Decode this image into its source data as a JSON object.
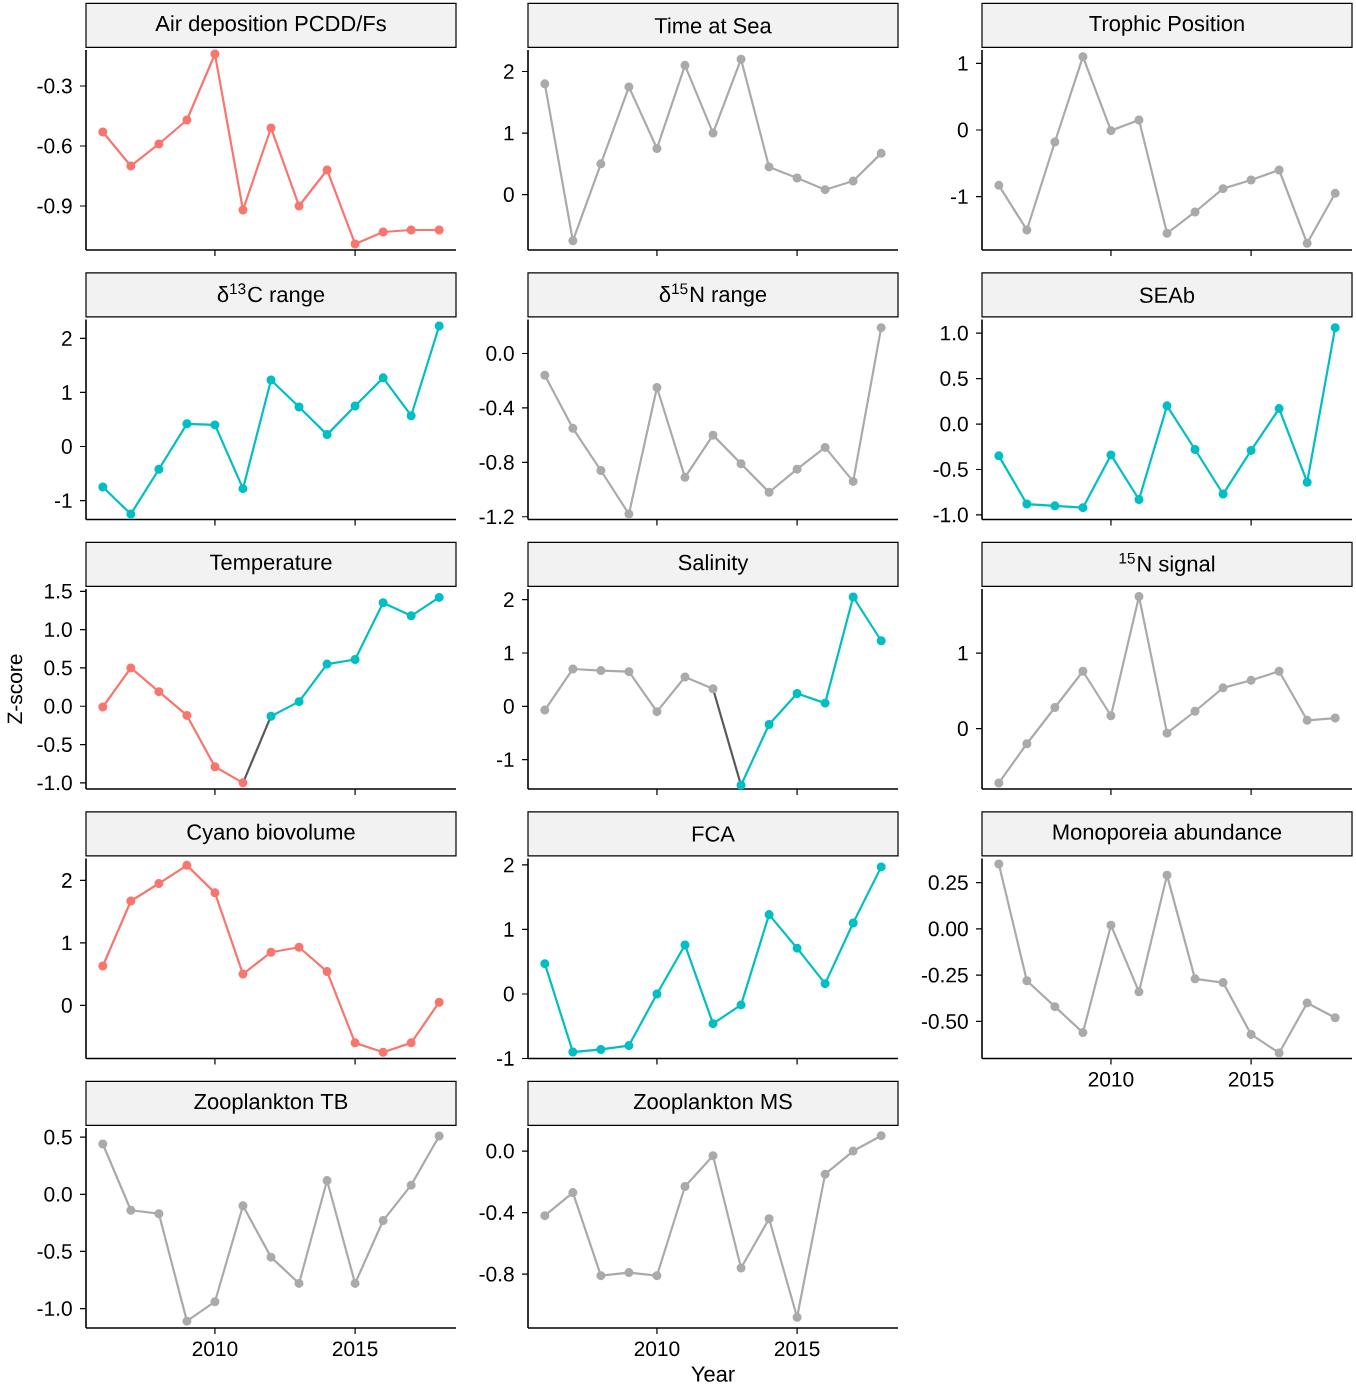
{
  "chart_data": [
    {
      "type": "line",
      "title": "Air deposition PCDD/Fs",
      "x": [
        2006,
        2007,
        2008,
        2009,
        2010,
        2011,
        2012,
        2013,
        2014,
        2015,
        2016,
        2017,
        2018
      ],
      "xlim": [
        2005.4,
        2018.6
      ],
      "xticks": [
        2010,
        2015
      ],
      "ylim": [
        -1.12,
        -0.12
      ],
      "yticks": [
        -0.9,
        -0.6,
        -0.3
      ],
      "marker": "circle",
      "tick_labels": "y",
      "series": [
        {
          "color": "#f8766d",
          "values": [
            -0.53,
            -0.7,
            -0.59,
            -0.47,
            -0.14,
            -0.92,
            -0.51,
            -0.9,
            -0.72,
            -1.09,
            -1.03,
            -1.02,
            -1.02
          ]
        }
      ]
    },
    {
      "type": "line",
      "title": "Time at Sea",
      "x": [
        2006,
        2007,
        2008,
        2009,
        2010,
        2011,
        2012,
        2013,
        2014,
        2015,
        2016,
        2017,
        2018
      ],
      "xlim": [
        2005.4,
        2018.6
      ],
      "xticks": [
        2010,
        2015
      ],
      "ylim": [
        -0.9,
        2.35
      ],
      "yticks": [
        0,
        1,
        2
      ],
      "marker": "circle",
      "tick_labels": "y",
      "series": [
        {
          "color": "#aaaaaa",
          "values": [
            1.8,
            -0.75,
            0.5,
            1.75,
            0.75,
            2.1,
            1.0,
            2.2,
            0.45,
            0.27,
            0.08,
            0.22,
            0.67
          ]
        }
      ]
    },
    {
      "type": "line",
      "title": "Trophic Position",
      "x": [
        2006,
        2007,
        2008,
        2009,
        2010,
        2011,
        2012,
        2013,
        2014,
        2015,
        2016,
        2017,
        2018
      ],
      "xlim": [
        2005.4,
        2018.6
      ],
      "xticks": [
        2010,
        2015
      ],
      "ylim": [
        -1.8,
        1.2
      ],
      "yticks": [
        -1,
        0,
        1
      ],
      "marker": "circle",
      "tick_labels": "y",
      "series": [
        {
          "color": "#aaaaaa",
          "values": [
            -0.83,
            -1.5,
            -0.18,
            1.1,
            -0.01,
            0.15,
            -1.55,
            -1.23,
            -0.88,
            -0.75,
            -0.6,
            -1.7,
            -0.95
          ]
        }
      ]
    },
    {
      "type": "line",
      "title": "δ$^{13}$C range",
      "x": [
        2006,
        2007,
        2008,
        2009,
        2010,
        2011,
        2012,
        2013,
        2014,
        2015,
        2016,
        2017,
        2018
      ],
      "xlim": [
        2005.4,
        2018.6
      ],
      "xticks": [
        2010,
        2015
      ],
      "ylim": [
        -1.35,
        2.35
      ],
      "yticks": [
        -1,
        0,
        1,
        2
      ],
      "marker": "circle",
      "tick_labels": "y",
      "series": [
        {
          "color": "#00bfc4",
          "values": [
            -0.75,
            -1.25,
            -0.42,
            0.42,
            0.4,
            -0.78,
            1.23,
            0.73,
            0.22,
            0.75,
            1.27,
            0.57,
            2.23
          ]
        }
      ]
    },
    {
      "type": "line",
      "title": "δ$^{15}$N range",
      "x": [
        2006,
        2007,
        2008,
        2009,
        2010,
        2011,
        2012,
        2013,
        2014,
        2015,
        2016,
        2017,
        2018
      ],
      "xlim": [
        2005.4,
        2018.6
      ],
      "xticks": [
        2010,
        2015
      ],
      "ylim": [
        -1.22,
        0.25
      ],
      "yticks": [
        {
          "value": -1.2,
          "label": "-1.2"
        },
        {
          "value": -0.8,
          "label": "-0.8"
        },
        {
          "value": -0.4,
          "label": "-0.4"
        },
        {
          "value": 0,
          "label": "0.0"
        }
      ],
      "marker": "circle",
      "tick_labels": "y",
      "series": [
        {
          "color": "#aaaaaa",
          "values": [
            -0.16,
            -0.55,
            -0.86,
            -1.18,
            -0.25,
            -0.91,
            -0.6,
            -0.81,
            -1.02,
            -0.85,
            -0.69,
            -0.94,
            0.19
          ]
        }
      ]
    },
    {
      "type": "line",
      "title": "SEAb",
      "x": [
        2006,
        2007,
        2008,
        2009,
        2010,
        2011,
        2012,
        2013,
        2014,
        2015,
        2016,
        2017,
        2018
      ],
      "xlim": [
        2005.4,
        2018.6
      ],
      "xticks": [
        2010,
        2015
      ],
      "ylim": [
        -1.05,
        1.15
      ],
      "yticks": [
        {
          "value": -1,
          "label": "-1.0"
        },
        {
          "value": -0.5,
          "label": "-0.5"
        },
        {
          "value": 0,
          "label": "0.0"
        },
        {
          "value": 0.5,
          "label": "0.5"
        },
        {
          "value": 1,
          "label": "1.0"
        }
      ],
      "marker": "circle",
      "tick_labels": "y",
      "series": [
        {
          "color": "#00bfc4",
          "values": [
            -0.35,
            -0.88,
            -0.9,
            -0.92,
            -0.34,
            -0.83,
            0.2,
            -0.28,
            -0.77,
            -0.29,
            0.17,
            -0.64,
            1.06
          ]
        }
      ]
    },
    {
      "type": "line",
      "title": "Temperature",
      "ylabel": "Z-score",
      "xlim": [
        2005.4,
        2018.6
      ],
      "xticks": [
        2010,
        2015
      ],
      "ylim": [
        -1.08,
        1.53
      ],
      "yticks": [
        {
          "value": -1,
          "label": "-1.0"
        },
        {
          "value": -0.5,
          "label": "-0.5"
        },
        {
          "value": 0,
          "label": "0.0"
        },
        {
          "value": 0.5,
          "label": "0.5"
        },
        {
          "value": 1,
          "label": "1.0"
        },
        {
          "value": 1.5,
          "label": "1.5"
        }
      ],
      "marker": "circle",
      "tick_labels": "y",
      "series": [
        {
          "color": "#f8766d",
          "x": [
            2006,
            2007,
            2008,
            2009,
            2010,
            2011
          ],
          "values": [
            -0.01,
            0.5,
            0.19,
            -0.12,
            -0.79,
            -1.0
          ]
        },
        {
          "color": "#595959",
          "marker": "none",
          "x": [
            2011,
            2012
          ],
          "values": [
            -1.0,
            -0.13
          ]
        },
        {
          "color": "#00bfc4",
          "x": [
            2012,
            2013,
            2014,
            2015,
            2016,
            2017,
            2018
          ],
          "values": [
            -0.13,
            0.06,
            0.55,
            0.61,
            1.35,
            1.18,
            1.42
          ]
        }
      ]
    },
    {
      "type": "line",
      "title": "Salinity",
      "xlim": [
        2005.4,
        2018.6
      ],
      "xticks": [
        2010,
        2015
      ],
      "ylim": [
        -1.55,
        2.2
      ],
      "yticks": [
        -1,
        0,
        1,
        2
      ],
      "marker": "circle",
      "tick_labels": "y",
      "series": [
        {
          "color": "#aaaaaa",
          "x": [
            2006,
            2007,
            2008,
            2009,
            2010,
            2011,
            2012
          ],
          "values": [
            -0.07,
            0.7,
            0.67,
            0.65,
            -0.1,
            0.55,
            0.33
          ]
        },
        {
          "color": "#595959",
          "marker": "none",
          "x": [
            2012,
            2013
          ],
          "values": [
            0.33,
            -1.48
          ]
        },
        {
          "color": "#00bfc4",
          "x": [
            2013,
            2014,
            2015,
            2016,
            2017,
            2018
          ],
          "values": [
            -1.48,
            -0.34,
            0.24,
            0.06,
            2.05,
            1.23
          ]
        }
      ]
    },
    {
      "type": "line",
      "title": "$^{15}$N signal",
      "x": [
        2006,
        2007,
        2008,
        2009,
        2010,
        2011,
        2012,
        2013,
        2014,
        2015,
        2016,
        2017,
        2018
      ],
      "xlim": [
        2005.4,
        2018.6
      ],
      "xticks": [
        2010,
        2015
      ],
      "ylim": [
        -0.8,
        1.85
      ],
      "yticks": [
        0,
        1
      ],
      "marker": "circle",
      "tick_labels": "y",
      "series": [
        {
          "color": "#aaaaaa",
          "values": [
            -0.72,
            -0.2,
            0.28,
            0.76,
            0.17,
            1.75,
            -0.06,
            0.23,
            0.54,
            0.64,
            0.76,
            0.11,
            0.14
          ]
        }
      ]
    },
    {
      "type": "line",
      "title": "Cyano biovolume",
      "x": [
        2006,
        2007,
        2008,
        2009,
        2010,
        2011,
        2012,
        2013,
        2014,
        2015,
        2016,
        2017,
        2018
      ],
      "xlim": [
        2005.4,
        2018.6
      ],
      "xticks": [
        2010,
        2015
      ],
      "ylim": [
        -0.85,
        2.35
      ],
      "yticks": [
        0,
        1,
        2
      ],
      "marker": "circle",
      "tick_labels": "y",
      "series": [
        {
          "color": "#f8766d",
          "values": [
            0.63,
            1.67,
            1.95,
            2.24,
            1.8,
            0.5,
            0.85,
            0.93,
            0.54,
            -0.6,
            -0.75,
            -0.6,
            0.05
          ]
        }
      ]
    },
    {
      "type": "line",
      "title": "FCA",
      "x": [
        2006,
        2007,
        2008,
        2009,
        2010,
        2011,
        2012,
        2013,
        2014,
        2015,
        2016,
        2017,
        2018
      ],
      "xlim": [
        2005.4,
        2018.6
      ],
      "xticks": [
        2010,
        2015
      ],
      "ylim": [
        -1.0,
        2.1
      ],
      "yticks": [
        -1,
        0,
        1,
        2
      ],
      "marker": "circle",
      "tick_labels": "y",
      "series": [
        {
          "color": "#00bfc4",
          "values": [
            0.47,
            -0.9,
            -0.86,
            -0.8,
            0.0,
            0.76,
            -0.46,
            -0.17,
            1.23,
            0.71,
            0.16,
            1.1,
            1.97
          ]
        }
      ]
    },
    {
      "type": "line",
      "title": "Monoporeia abundance",
      "x": [
        2006,
        2007,
        2008,
        2009,
        2010,
        2011,
        2012,
        2013,
        2014,
        2015,
        2016,
        2017,
        2018
      ],
      "xlim": [
        2005.4,
        2018.6
      ],
      "xticks": [
        2010,
        2015
      ],
      "ylim": [
        -0.7,
        0.38
      ],
      "yticks": [
        {
          "value": -0.5,
          "label": "-0.50"
        },
        {
          "value": -0.25,
          "label": "-0.25"
        },
        {
          "value": 0,
          "label": "0.00"
        },
        {
          "value": 0.25,
          "label": "0.25"
        }
      ],
      "marker": "circle",
      "series": [
        {
          "color": "#aaaaaa",
          "values": [
            0.35,
            -0.28,
            -0.42,
            -0.56,
            0.02,
            -0.34,
            0.29,
            -0.27,
            -0.29,
            -0.57,
            -0.67,
            -0.4,
            -0.48
          ]
        }
      ]
    },
    {
      "type": "line",
      "title": "Zooplankton TB",
      "x": [
        2006,
        2007,
        2008,
        2009,
        2010,
        2011,
        2012,
        2013,
        2014,
        2015,
        2016,
        2017,
        2018
      ],
      "xlim": [
        2005.4,
        2018.6
      ],
      "xticks": [
        2010,
        2015
      ],
      "ylim": [
        -1.17,
        0.58
      ],
      "yticks": [
        {
          "value": -1,
          "label": "-1.0"
        },
        {
          "value": -0.5,
          "label": "-0.5"
        },
        {
          "value": 0,
          "label": "0.0"
        },
        {
          "value": 0.5,
          "label": "0.5"
        }
      ],
      "marker": "circle",
      "series": [
        {
          "color": "#aaaaaa",
          "values": [
            0.44,
            -0.14,
            -0.17,
            -1.11,
            -0.94,
            -0.1,
            -0.55,
            -0.78,
            0.12,
            -0.78,
            -0.23,
            0.08,
            0.51
          ]
        }
      ]
    },
    {
      "type": "line",
      "title": "Zooplankton MS",
      "xlabel": "Year",
      "x": [
        2006,
        2007,
        2008,
        2009,
        2010,
        2011,
        2012,
        2013,
        2014,
        2015,
        2016,
        2017,
        2018
      ],
      "xlim": [
        2005.4,
        2018.6
      ],
      "xticks": [
        2010,
        2015
      ],
      "ylim": [
        -1.15,
        0.15
      ],
      "yticks": [
        {
          "value": -0.8,
          "label": "-0.8"
        },
        {
          "value": -0.4,
          "label": "-0.4"
        },
        {
          "value": 0,
          "label": "0.0"
        }
      ],
      "marker": "circle",
      "series": [
        {
          "color": "#aaaaaa",
          "values": [
            -0.42,
            -0.27,
            -0.81,
            -0.79,
            -0.81,
            -0.23,
            -0.03,
            -0.76,
            -0.44,
            -1.08,
            -0.15,
            0.0,
            0.1
          ]
        }
      ]
    }
  ]
}
